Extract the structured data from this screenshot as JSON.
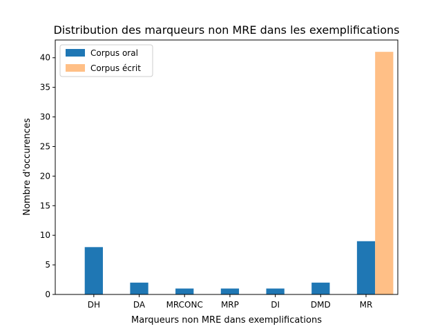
{
  "chart_data": {
    "type": "bar",
    "title": "Distribution des marqueurs non MRE dans les exemplifications",
    "xlabel": "Marqueurs non MRE dans exemplifications",
    "ylabel": "Nombre d'occurences",
    "categories": [
      "DH",
      "DA",
      "MRCONC",
      "MRP",
      "DI",
      "DMD",
      "MR"
    ],
    "series": [
      {
        "name": "Corpus oral",
        "color": "#1f77b4",
        "values": [
          8,
          2,
          1,
          1,
          1,
          2,
          9
        ]
      },
      {
        "name": "Corpus écrit",
        "color": "#ffbf86",
        "values": [
          0,
          0,
          0,
          0,
          0,
          0,
          41
        ]
      }
    ],
    "ylim": [
      0,
      43
    ],
    "yticks": [
      0,
      5,
      10,
      15,
      20,
      25,
      30,
      35,
      40
    ],
    "grid": false,
    "legend_position": "upper-left"
  }
}
